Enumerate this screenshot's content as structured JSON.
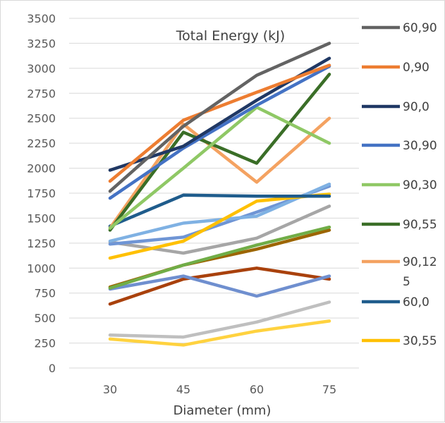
{
  "chart_data": {
    "type": "line",
    "title": "Total Energy (kJ)",
    "xlabel": "Diameter (mm)",
    "ylabel": "",
    "categories": [
      "30",
      "45",
      "60",
      "75"
    ],
    "ylim": [
      0,
      3500
    ],
    "yticks": [
      "0",
      "250",
      "500",
      "750",
      "1000",
      "1250",
      "1500",
      "1750",
      "2000",
      "2250",
      "2500",
      "2750",
      "3000",
      "3250",
      "3500"
    ],
    "grid": true,
    "legend_position": "right",
    "series": [
      {
        "name": "60,90",
        "color": "#636363",
        "values": [
          1770,
          2420,
          2930,
          3250
        ]
      },
      {
        "name": "0,90",
        "color": "#ED7D31",
        "values": [
          1870,
          2480,
          2760,
          3030
        ]
      },
      {
        "name": "90,0",
        "color": "#203864",
        "values": [
          1980,
          2220,
          2680,
          3100
        ]
      },
      {
        "name": "30,90",
        "color": "#4472C4",
        "values": [
          1700,
          2200,
          2630,
          3020
        ]
      },
      {
        "name": "90,30",
        "color": "#8FC865",
        "values": [
          1400,
          2000,
          2610,
          2250
        ]
      },
      {
        "name": "90,55",
        "color": "#3A6E27",
        "values": [
          1380,
          2360,
          2050,
          2940
        ]
      },
      {
        "name": "90,125",
        "color": "#F4A261",
        "values": [
          1400,
          2440,
          1860,
          2500
        ]
      },
      {
        "name": "60,0",
        "color": "#1F5C8C",
        "values": [
          1420,
          1730,
          1720,
          1720
        ]
      },
      {
        "name": "30,55",
        "color": "#FFC000",
        "values": [
          1100,
          1270,
          1670,
          1740
        ]
      },
      {
        "name": "",
        "color": "#7FB1E3",
        "values": [
          1270,
          1450,
          1520,
          1840
        ]
      },
      {
        "name": "",
        "color": "#6F95D5",
        "values": [
          1240,
          1310,
          1560,
          1820
        ]
      },
      {
        "name": "",
        "color": "#A6A6A6",
        "values": [
          1260,
          1150,
          1300,
          1620
        ]
      },
      {
        "name": "",
        "color": "#70AD47",
        "values": [
          800,
          1030,
          1230,
          1410
        ]
      },
      {
        "name": "",
        "color": "#9C6500",
        "values": [
          810,
          1030,
          1190,
          1380
        ]
      },
      {
        "name": "",
        "color": "#6F8FCF",
        "values": [
          790,
          920,
          720,
          920
        ]
      },
      {
        "name": "",
        "color": "#A9410C",
        "values": [
          640,
          890,
          1000,
          890
        ]
      },
      {
        "name": "",
        "color": "#BFBFBF",
        "values": [
          330,
          310,
          460,
          660
        ]
      },
      {
        "name": "",
        "color": "#FFD23F",
        "values": [
          290,
          230,
          370,
          470
        ]
      }
    ]
  },
  "legend_label_wraps": {
    "90,125": [
      "90,12",
      "5"
    ]
  }
}
